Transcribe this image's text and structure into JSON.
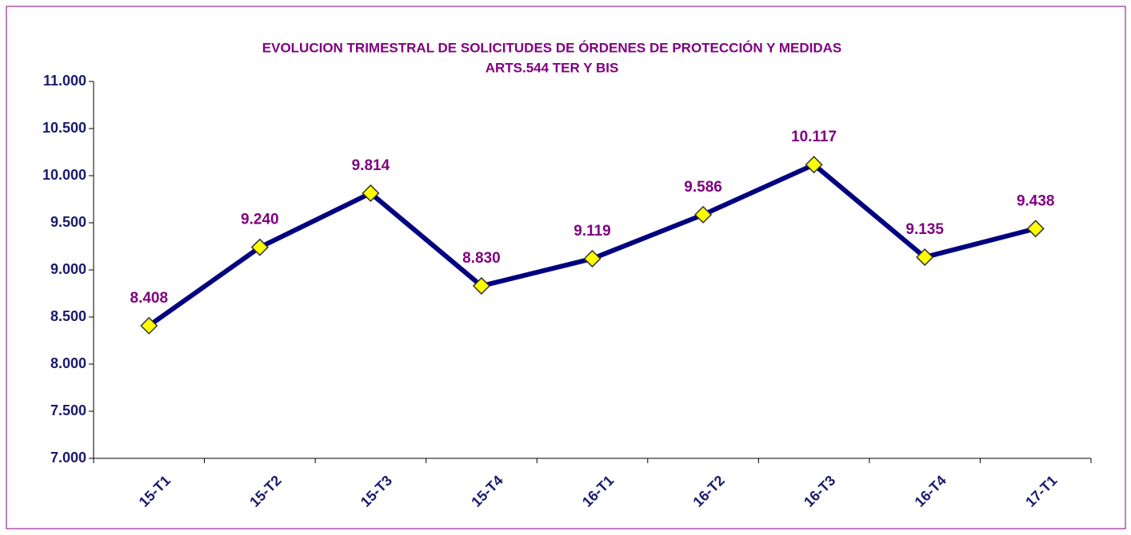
{
  "chart_data": {
    "type": "line",
    "title": "EVOLUCION TRIMESTRAL DE SOLICITUDES DE ÓRDENES DE PROTECCIÓN Y MEDIDAS",
    "subtitle": "ARTS.544 TER Y BIS",
    "categories": [
      "15-T1",
      "15-T2",
      "15-T3",
      "15-T4",
      "16-T1",
      "16-T2",
      "16-T3",
      "16-T4",
      "17-T1"
    ],
    "series": [
      {
        "color": "#000080",
        "marker_color": "#ffff00",
        "values": [
          8408,
          9240,
          9814,
          8830,
          9119,
          9586,
          10117,
          9135,
          9438
        ],
        "value_labels": [
          "8.408",
          "9.240",
          "9.814",
          "8.830",
          "9.119",
          "9.586",
          "10.117",
          "9.135",
          "9.438"
        ]
      }
    ],
    "ylim": [
      7000,
      11000
    ],
    "yticks": [
      {
        "value": 7000,
        "label": "7.000"
      },
      {
        "value": 7500,
        "label": "7.500"
      },
      {
        "value": 8000,
        "label": "8.000"
      },
      {
        "value": 8500,
        "label": "8.500"
      },
      {
        "value": 9000,
        "label": "9.000"
      },
      {
        "value": 9500,
        "label": "9.500"
      },
      {
        "value": 10000,
        "label": "10.000"
      },
      {
        "value": 10500,
        "label": "10.500"
      },
      {
        "value": 11000,
        "label": "11.000"
      }
    ],
    "grid": false
  }
}
